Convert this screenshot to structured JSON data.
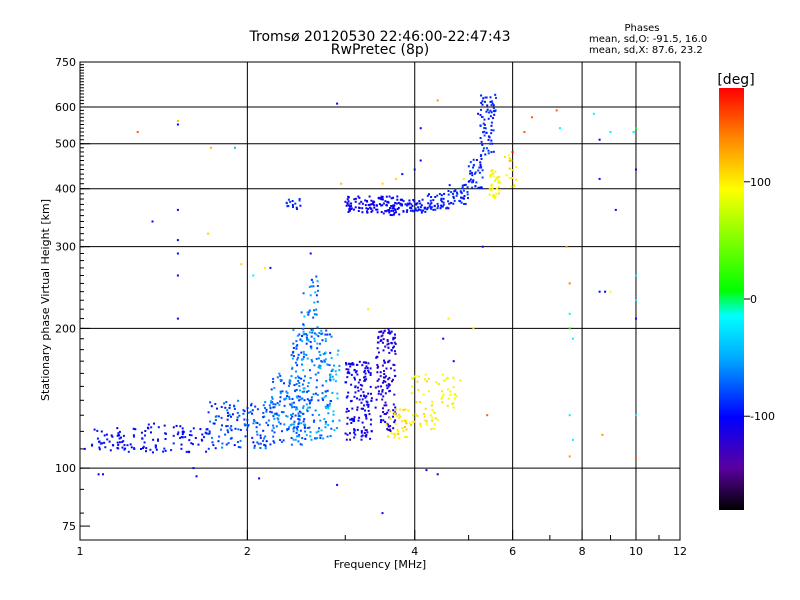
{
  "chart_data": {
    "type": "scatter",
    "title": "Tromsø 20120530 22:46:00-22:47:43",
    "subtitle": "RwPretec (8p)",
    "xlabel": "Frequency [MHz]",
    "ylabel": "Stationary phase Virtual Height [km]",
    "x_scale": "log",
    "y_scale": "log",
    "xlim": [
      1,
      12
    ],
    "ylim": [
      70,
      750
    ],
    "x_ticks": [
      1,
      2,
      4,
      6,
      8,
      10,
      12
    ],
    "y_ticks": [
      75,
      100,
      200,
      300,
      400,
      500,
      600,
      750
    ],
    "grid": true,
    "phases_header": "Phases",
    "phases_line1": "mean, sd,O: -91.5, 16.0",
    "phases_line2": "mean, sd,X: 87.6, 23.2",
    "colorbar": {
      "title": "[deg]",
      "range": [
        -180,
        180
      ],
      "ticks": [
        100,
        0,
        -100
      ],
      "tick_labels": [
        "100",
        "0",
        "-100"
      ]
    },
    "clusters": [
      {
        "f_range": [
          1.05,
          1.2
        ],
        "h_range": [
          108,
          122
        ],
        "count": 40,
        "phase": [
          -110,
          -90
        ]
      },
      {
        "f_range": [
          1.2,
          1.7
        ],
        "h_range": [
          108,
          125
        ],
        "count": 90,
        "phase": [
          -105,
          -90
        ]
      },
      {
        "f_range": [
          1.7,
          2.2
        ],
        "h_range": [
          110,
          140
        ],
        "count": 130,
        "phase": [
          -100,
          -60
        ]
      },
      {
        "f_range": [
          2.2,
          2.55
        ],
        "h_range": [
          112,
          160
        ],
        "count": 140,
        "phase": [
          -90,
          -50
        ]
      },
      {
        "f_range": [
          2.4,
          2.85
        ],
        "h_range": [
          115,
          200
        ],
        "count": 200,
        "phase": [
          -90,
          -40
        ]
      },
      {
        "f_range": [
          2.5,
          2.7
        ],
        "h_range": [
          180,
          260
        ],
        "count": 45,
        "phase": [
          -90,
          -40
        ]
      },
      {
        "f_range": [
          2.75,
          2.95
        ],
        "h_range": [
          120,
          190
        ],
        "count": 30,
        "phase": [
          -60,
          -30
        ]
      },
      {
        "f_range": [
          3.0,
          3.35
        ],
        "h_range": [
          115,
          170
        ],
        "count": 150,
        "phase": [
          -125,
          -95
        ]
      },
      {
        "f_range": [
          3.4,
          3.7
        ],
        "h_range": [
          120,
          200
        ],
        "count": 140,
        "phase": [
          -130,
          -100
        ]
      },
      {
        "f_range": [
          3.55,
          3.95
        ],
        "h_range": [
          115,
          135
        ],
        "count": 40,
        "phase": [
          90,
          115
        ]
      },
      {
        "f_range": [
          3.95,
          4.4
        ],
        "h_range": [
          120,
          160
        ],
        "count": 45,
        "phase": [
          85,
          110
        ]
      },
      {
        "f_range": [
          4.4,
          4.9
        ],
        "h_range": [
          135,
          160
        ],
        "count": 25,
        "phase": [
          80,
          105
        ]
      },
      {
        "f_range": [
          2.35,
          2.5
        ],
        "h_range": [
          360,
          380
        ],
        "count": 15,
        "phase": [
          -100,
          -80
        ]
      },
      {
        "f_range": [
          3.0,
          3.4
        ],
        "h_range": [
          355,
          385
        ],
        "count": 60,
        "phase": [
          -115,
          -100
        ]
      },
      {
        "f_range": [
          3.4,
          3.8
        ],
        "h_range": [
          350,
          385
        ],
        "count": 70,
        "phase": [
          -110,
          -95
        ]
      },
      {
        "f_range": [
          3.8,
          4.2
        ],
        "h_range": [
          355,
          380
        ],
        "count": 45,
        "phase": [
          -105,
          -90
        ]
      },
      {
        "f_range": [
          4.2,
          4.6
        ],
        "h_range": [
          360,
          390
        ],
        "count": 40,
        "phase": [
          -100,
          -85
        ]
      },
      {
        "f_range": [
          4.6,
          5.0
        ],
        "h_range": [
          370,
          410
        ],
        "count": 40,
        "phase": [
          -100,
          -80
        ]
      },
      {
        "f_range": [
          5.0,
          5.3
        ],
        "h_range": [
          400,
          470
        ],
        "count": 40,
        "phase": [
          -100,
          -80
        ]
      },
      {
        "f_range": [
          5.25,
          5.6
        ],
        "h_range": [
          470,
          640
        ],
        "count": 70,
        "phase": [
          -100,
          -80
        ]
      },
      {
        "f_range": [
          5.45,
          5.7
        ],
        "h_range": [
          380,
          440
        ],
        "count": 35,
        "phase": [
          80,
          110
        ]
      },
      {
        "f_range": [
          5.8,
          6.1
        ],
        "h_range": [
          400,
          480
        ],
        "count": 15,
        "phase": [
          80,
          120
        ]
      }
    ],
    "scatter_points": [
      {
        "f": 1.02,
        "h": 110,
        "phase": -100
      },
      {
        "f": 1.08,
        "h": 97,
        "phase": -100
      },
      {
        "f": 1.1,
        "h": 97,
        "phase": -100
      },
      {
        "f": 1.27,
        "h": 530,
        "phase": 150
      },
      {
        "f": 1.35,
        "h": 340,
        "phase": -100
      },
      {
        "f": 1.5,
        "h": 560,
        "phase": 120
      },
      {
        "f": 1.5,
        "h": 550,
        "phase": -100
      },
      {
        "f": 1.5,
        "h": 360,
        "phase": -100
      },
      {
        "f": 1.5,
        "h": 310,
        "phase": -100
      },
      {
        "f": 1.5,
        "h": 290,
        "phase": -100
      },
      {
        "f": 1.5,
        "h": 260,
        "phase": -100
      },
      {
        "f": 1.5,
        "h": 210,
        "phase": -100
      },
      {
        "f": 1.6,
        "h": 100,
        "phase": -100
      },
      {
        "f": 1.62,
        "h": 96,
        "phase": -100
      },
      {
        "f": 1.7,
        "h": 320,
        "phase": 110
      },
      {
        "f": 1.72,
        "h": 490,
        "phase": 120
      },
      {
        "f": 1.9,
        "h": 490,
        "phase": -40
      },
      {
        "f": 1.95,
        "h": 275,
        "phase": 110
      },
      {
        "f": 2.05,
        "h": 260,
        "phase": -20
      },
      {
        "f": 2.1,
        "h": 95,
        "phase": -100
      },
      {
        "f": 2.15,
        "h": 270,
        "phase": 100
      },
      {
        "f": 2.2,
        "h": 270,
        "phase": -100
      },
      {
        "f": 2.6,
        "h": 290,
        "phase": -100
      },
      {
        "f": 2.9,
        "h": 610,
        "phase": -100
      },
      {
        "f": 2.9,
        "h": 92,
        "phase": -100
      },
      {
        "f": 2.95,
        "h": 410,
        "phase": 120
      },
      {
        "f": 3.3,
        "h": 220,
        "phase": 100
      },
      {
        "f": 3.5,
        "h": 80,
        "phase": -100
      },
      {
        "f": 3.5,
        "h": 410,
        "phase": 110
      },
      {
        "f": 3.7,
        "h": 420,
        "phase": 110
      },
      {
        "f": 3.8,
        "h": 430,
        "phase": -100
      },
      {
        "f": 4.0,
        "h": 440,
        "phase": -100
      },
      {
        "f": 4.1,
        "h": 460,
        "phase": -100
      },
      {
        "f": 4.1,
        "h": 540,
        "phase": -100
      },
      {
        "f": 4.2,
        "h": 99,
        "phase": -100
      },
      {
        "f": 4.4,
        "h": 620,
        "phase": 130
      },
      {
        "f": 4.4,
        "h": 97,
        "phase": -100
      },
      {
        "f": 4.5,
        "h": 190,
        "phase": -100
      },
      {
        "f": 4.6,
        "h": 210,
        "phase": 100
      },
      {
        "f": 4.7,
        "h": 170,
        "phase": -100
      },
      {
        "f": 4.9,
        "h": 420,
        "phase": 100
      },
      {
        "f": 5.1,
        "h": 200,
        "phase": 110
      },
      {
        "f": 5.2,
        "h": 580,
        "phase": -100
      },
      {
        "f": 5.3,
        "h": 300,
        "phase": -100
      },
      {
        "f": 5.4,
        "h": 130,
        "phase": 150
      },
      {
        "f": 6.0,
        "h": 480,
        "phase": 180
      },
      {
        "f": 6.3,
        "h": 530,
        "phase": 150
      },
      {
        "f": 6.5,
        "h": 570,
        "phase": 150
      },
      {
        "f": 7.2,
        "h": 590,
        "phase": 150
      },
      {
        "f": 7.3,
        "h": 540,
        "phase": -20
      },
      {
        "f": 7.5,
        "h": 300,
        "phase": 130
      },
      {
        "f": 7.6,
        "h": 250,
        "phase": 140
      },
      {
        "f": 7.6,
        "h": 215,
        "phase": -20
      },
      {
        "f": 7.6,
        "h": 200,
        "phase": 10
      },
      {
        "f": 7.7,
        "h": 190,
        "phase": -20
      },
      {
        "f": 7.6,
        "h": 130,
        "phase": -20
      },
      {
        "f": 7.6,
        "h": 106,
        "phase": 130
      },
      {
        "f": 7.7,
        "h": 115,
        "phase": -20
      },
      {
        "f": 8.4,
        "h": 580,
        "phase": -20
      },
      {
        "f": 8.6,
        "h": 510,
        "phase": -100
      },
      {
        "f": 8.6,
        "h": 420,
        "phase": -100
      },
      {
        "f": 8.6,
        "h": 240,
        "phase": -100
      },
      {
        "f": 8.7,
        "h": 118,
        "phase": 130
      },
      {
        "f": 8.8,
        "h": 240,
        "phase": -100
      },
      {
        "f": 9.0,
        "h": 530,
        "phase": -20
      },
      {
        "f": 9.0,
        "h": 240,
        "phase": 90
      },
      {
        "f": 9.2,
        "h": 360,
        "phase": -100
      },
      {
        "f": 9.9,
        "h": 530,
        "phase": -20
      },
      {
        "f": 10.0,
        "h": 540,
        "phase": 10
      },
      {
        "f": 10.0,
        "h": 440,
        "phase": -100
      },
      {
        "f": 10.0,
        "h": 260,
        "phase": -20
      },
      {
        "f": 10.0,
        "h": 230,
        "phase": -20
      },
      {
        "f": 10.0,
        "h": 210,
        "phase": -100
      },
      {
        "f": 10.0,
        "h": 130,
        "phase": -20
      },
      {
        "f": 10.0,
        "h": 105,
        "phase": 150
      }
    ]
  }
}
